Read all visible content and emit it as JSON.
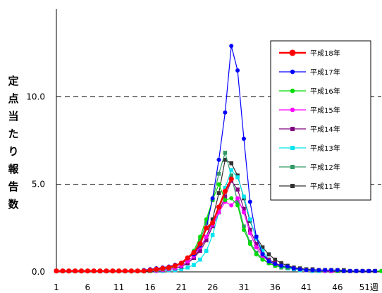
{
  "chart_data": {
    "type": "line",
    "ylabel": "定点当たり報告数",
    "xlabel_suffix": "週",
    "xlim": [
      1,
      53
    ],
    "ylim": [
      0,
      15
    ],
    "y_ticks": [
      "0.0",
      "5.0",
      "10.0"
    ],
    "y_tick_values": [
      0,
      5,
      10
    ],
    "dashed_gridlines": [
      5,
      10
    ],
    "x_ticks": [
      "1",
      "6",
      "11",
      "16",
      "21",
      "26",
      "31",
      "36",
      "41",
      "46",
      "51週"
    ],
    "x_tick_values": [
      1,
      6,
      11,
      16,
      21,
      26,
      31,
      36,
      41,
      46,
      51
    ],
    "legend_position": "top-right",
    "series": [
      {
        "name": "平成18年",
        "color": "#ff0000",
        "marker": "circle",
        "bold": true,
        "values": [
          0.05,
          0.05,
          0.05,
          0.05,
          0.05,
          0.05,
          0.05,
          0.05,
          0.05,
          0.05,
          0.05,
          0.05,
          0.05,
          0.05,
          0.05,
          0.1,
          0.15,
          0.2,
          0.25,
          0.35,
          0.5,
          0.8,
          1.1,
          1.6,
          2.5,
          2.8,
          3.7,
          4.6,
          5.3
        ]
      },
      {
        "name": "平成17年",
        "color": "#0000ff",
        "marker": "circle",
        "values": [
          0.05,
          0.05,
          0.05,
          0.05,
          0.05,
          0.05,
          0.05,
          0.05,
          0.05,
          0.05,
          0.05,
          0.05,
          0.05,
          0.05,
          0.1,
          0.15,
          0.2,
          0.25,
          0.3,
          0.4,
          0.5,
          0.8,
          1.0,
          1.5,
          2.5,
          4.2,
          6.4,
          9.1,
          12.9,
          11.5,
          7.6,
          4.0,
          2.0,
          1.0,
          0.6,
          0.45,
          0.35,
          0.3,
          0.2,
          0.15,
          0.1,
          0.1,
          0.1,
          0.1,
          0.1,
          0.1,
          0.05,
          0.05,
          0.05,
          0.05,
          0.05,
          0.05
        ]
      },
      {
        "name": "平成16年",
        "color": "#00dd00",
        "marker": "circle",
        "values": [
          0.05,
          0.05,
          0.05,
          0.05,
          0.05,
          0.05,
          0.05,
          0.05,
          0.05,
          0.05,
          0.05,
          0.05,
          0.05,
          0.05,
          0.05,
          0.05,
          0.1,
          0.15,
          0.2,
          0.3,
          0.5,
          0.8,
          1.2,
          2.0,
          3.0,
          4.1,
          5.0,
          4.1,
          4.2,
          3.8,
          2.4,
          1.6,
          1.0,
          0.7,
          0.5,
          0.35,
          0.3,
          0.25,
          0.2,
          0.15,
          0.1,
          0.1,
          0.1,
          0.1,
          0.1,
          0.05,
          0.05,
          0.05,
          0.05,
          0.05,
          0.05,
          0.05,
          0.05
        ]
      },
      {
        "name": "平成15年",
        "color": "#ff00ff",
        "marker": "circle",
        "values": [
          0.05,
          0.05,
          0.05,
          0.05,
          0.05,
          0.05,
          0.05,
          0.05,
          0.05,
          0.05,
          0.05,
          0.05,
          0.05,
          0.05,
          0.05,
          0.05,
          0.05,
          0.1,
          0.15,
          0.2,
          0.35,
          0.6,
          0.9,
          1.4,
          2.0,
          2.7,
          3.4,
          4.0,
          3.8,
          4.2,
          3.4,
          2.2,
          1.4,
          0.9,
          0.6,
          0.4,
          0.3,
          0.25,
          0.2,
          0.15,
          0.1,
          0.1,
          0.1,
          0.05,
          0.05,
          0.05,
          0.05,
          0.05,
          0.05,
          0.05,
          0.05,
          0.05
        ]
      },
      {
        "name": "平成14年",
        "color": "#800080",
        "marker": "square",
        "values": [
          0.05,
          0.05,
          0.05,
          0.05,
          0.05,
          0.05,
          0.05,
          0.05,
          0.05,
          0.05,
          0.05,
          0.05,
          0.05,
          0.05,
          0.05,
          0.05,
          0.1,
          0.1,
          0.15,
          0.2,
          0.3,
          0.5,
          0.8,
          1.2,
          1.8,
          2.6,
          3.4,
          4.3,
          5.2,
          4.7,
          3.6,
          2.4,
          1.6,
          1.0,
          0.7,
          0.5,
          0.35,
          0.25,
          0.2,
          0.15,
          0.1,
          0.1,
          0.1,
          0.1,
          0.05,
          0.05,
          0.05,
          0.05,
          0.05,
          0.05,
          0.05,
          0.05
        ]
      },
      {
        "name": "平成13年",
        "color": "#00e5ee",
        "marker": "square",
        "values": [
          0.05,
          0.05,
          0.05,
          0.05,
          0.05,
          0.05,
          0.05,
          0.05,
          0.05,
          0.05,
          0.05,
          0.05,
          0.05,
          0.05,
          0.05,
          0.05,
          0.05,
          0.05,
          0.1,
          0.1,
          0.15,
          0.25,
          0.4,
          0.7,
          1.2,
          2.1,
          3.4,
          4.8,
          5.8,
          5.4,
          4.3,
          3.0,
          1.9,
          1.2,
          0.7,
          0.45,
          0.3,
          0.2,
          0.15,
          0.1,
          0.1,
          0.05,
          0.05,
          0.05,
          0.05,
          0.05,
          0.05,
          0.05,
          0.05,
          0.05,
          0.05,
          0.05
        ]
      },
      {
        "name": "平成12年",
        "color": "#339966",
        "marker": "square",
        "values": [
          0.05,
          0.05,
          0.05,
          0.05,
          0.05,
          0.05,
          0.05,
          0.05,
          0.05,
          0.05,
          0.05,
          0.05,
          0.05,
          0.05,
          0.05,
          0.05,
          0.1,
          0.15,
          0.2,
          0.3,
          0.45,
          0.7,
          1.1,
          1.8,
          2.8,
          4.1,
          5.6,
          6.8,
          5.5,
          4.0,
          2.6,
          1.7,
          1.1,
          0.75,
          0.5,
          0.35,
          0.25,
          0.2,
          0.15,
          0.1,
          0.1,
          0.1,
          0.05,
          0.05,
          0.05,
          0.05,
          0.05,
          0.05,
          0.05,
          0.05,
          0.05,
          0.05
        ]
      },
      {
        "name": "平成11年",
        "color": "#333333",
        "marker": "square",
        "values": [
          0.05,
          0.05,
          0.05,
          0.05,
          0.05,
          0.05,
          0.05,
          0.05,
          0.05,
          0.05,
          0.05,
          0.05,
          0.05,
          0.05,
          0.05,
          0.05,
          0.1,
          0.1,
          0.15,
          0.2,
          0.3,
          0.5,
          0.8,
          1.3,
          2.0,
          3.0,
          4.5,
          6.4,
          6.2,
          5.5,
          4.2,
          2.9,
          2.0,
          1.4,
          1.0,
          0.7,
          0.5,
          0.35,
          0.25,
          0.2,
          0.15,
          0.15,
          0.1,
          0.1,
          0.1,
          0.1,
          0.1,
          0.05,
          0.05,
          0.05,
          0.05,
          0.05
        ]
      }
    ]
  }
}
